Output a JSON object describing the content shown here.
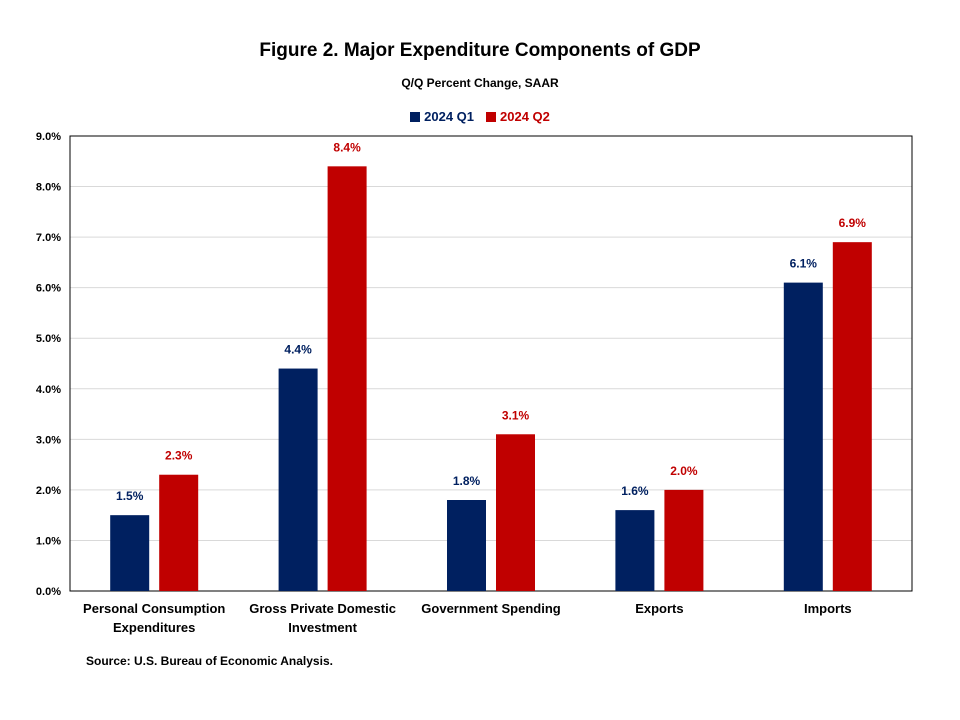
{
  "chart_data": {
    "type": "bar",
    "title": "Figure 2. Major Expenditure Components of GDP",
    "subtitle": "Q/Q Percent Change, SAAR",
    "categories": [
      [
        "Personal Consumption",
        "Expenditures"
      ],
      [
        "Gross Private Domestic",
        "Investment"
      ],
      [
        "Government Spending"
      ],
      [
        "Exports"
      ],
      [
        "Imports"
      ]
    ],
    "series": [
      {
        "name": "2024 Q1",
        "color": "#002060",
        "values": [
          1.5,
          4.4,
          1.8,
          1.6,
          6.1
        ],
        "labels": [
          "1.5%",
          "4.4%",
          "1.8%",
          "1.6%",
          "6.1%"
        ]
      },
      {
        "name": "2024 Q2",
        "color": "#C00000",
        "values": [
          2.3,
          8.4,
          3.1,
          2.0,
          6.9
        ],
        "labels": [
          "2.3%",
          "8.4%",
          "3.1%",
          "2.0%",
          "6.9%"
        ]
      }
    ],
    "y_ticks": [
      "0.0%",
      "1.0%",
      "2.0%",
      "3.0%",
      "4.0%",
      "5.0%",
      "6.0%",
      "7.0%",
      "8.0%",
      "9.0%"
    ],
    "ylim": [
      0,
      9
    ],
    "grid": true,
    "legend_position": "top-center",
    "source": "Source: U.S. Bureau of Economic Analysis."
  }
}
